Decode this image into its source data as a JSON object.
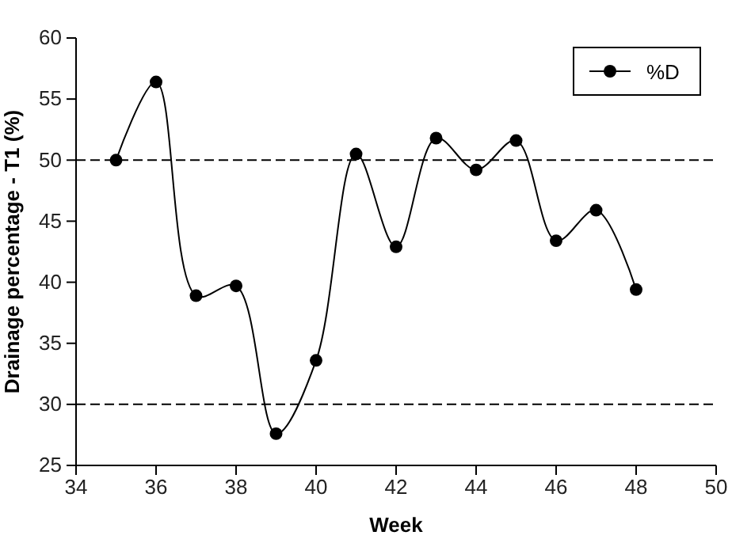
{
  "chart_data": {
    "type": "line",
    "xlabel": "Week",
    "ylabel": "Drainage percentage - T1 (%)",
    "x": [
      35,
      36,
      37,
      38,
      39,
      40,
      41,
      42,
      43,
      44,
      45,
      46,
      47,
      48
    ],
    "series": [
      {
        "name": "%D",
        "color": "#000000",
        "values": [
          50.0,
          56.4,
          38.9,
          39.7,
          27.6,
          33.6,
          50.5,
          42.9,
          51.8,
          49.2,
          51.6,
          43.4,
          45.9,
          39.4
        ]
      }
    ],
    "xlim": [
      34,
      50
    ],
    "xticks": [
      34,
      36,
      38,
      40,
      42,
      44,
      46,
      48,
      50
    ],
    "ylim": [
      25,
      60
    ],
    "yticks": [
      25,
      30,
      35,
      40,
      45,
      50,
      55,
      60
    ],
    "ref_lines": [
      {
        "axis": "y",
        "value": 50,
        "line_style": "dashed"
      },
      {
        "axis": "y",
        "value": 30,
        "line_style": "dashed"
      }
    ],
    "legend": "top right",
    "marker": "circle",
    "line_style": "solid",
    "grid": false
  }
}
